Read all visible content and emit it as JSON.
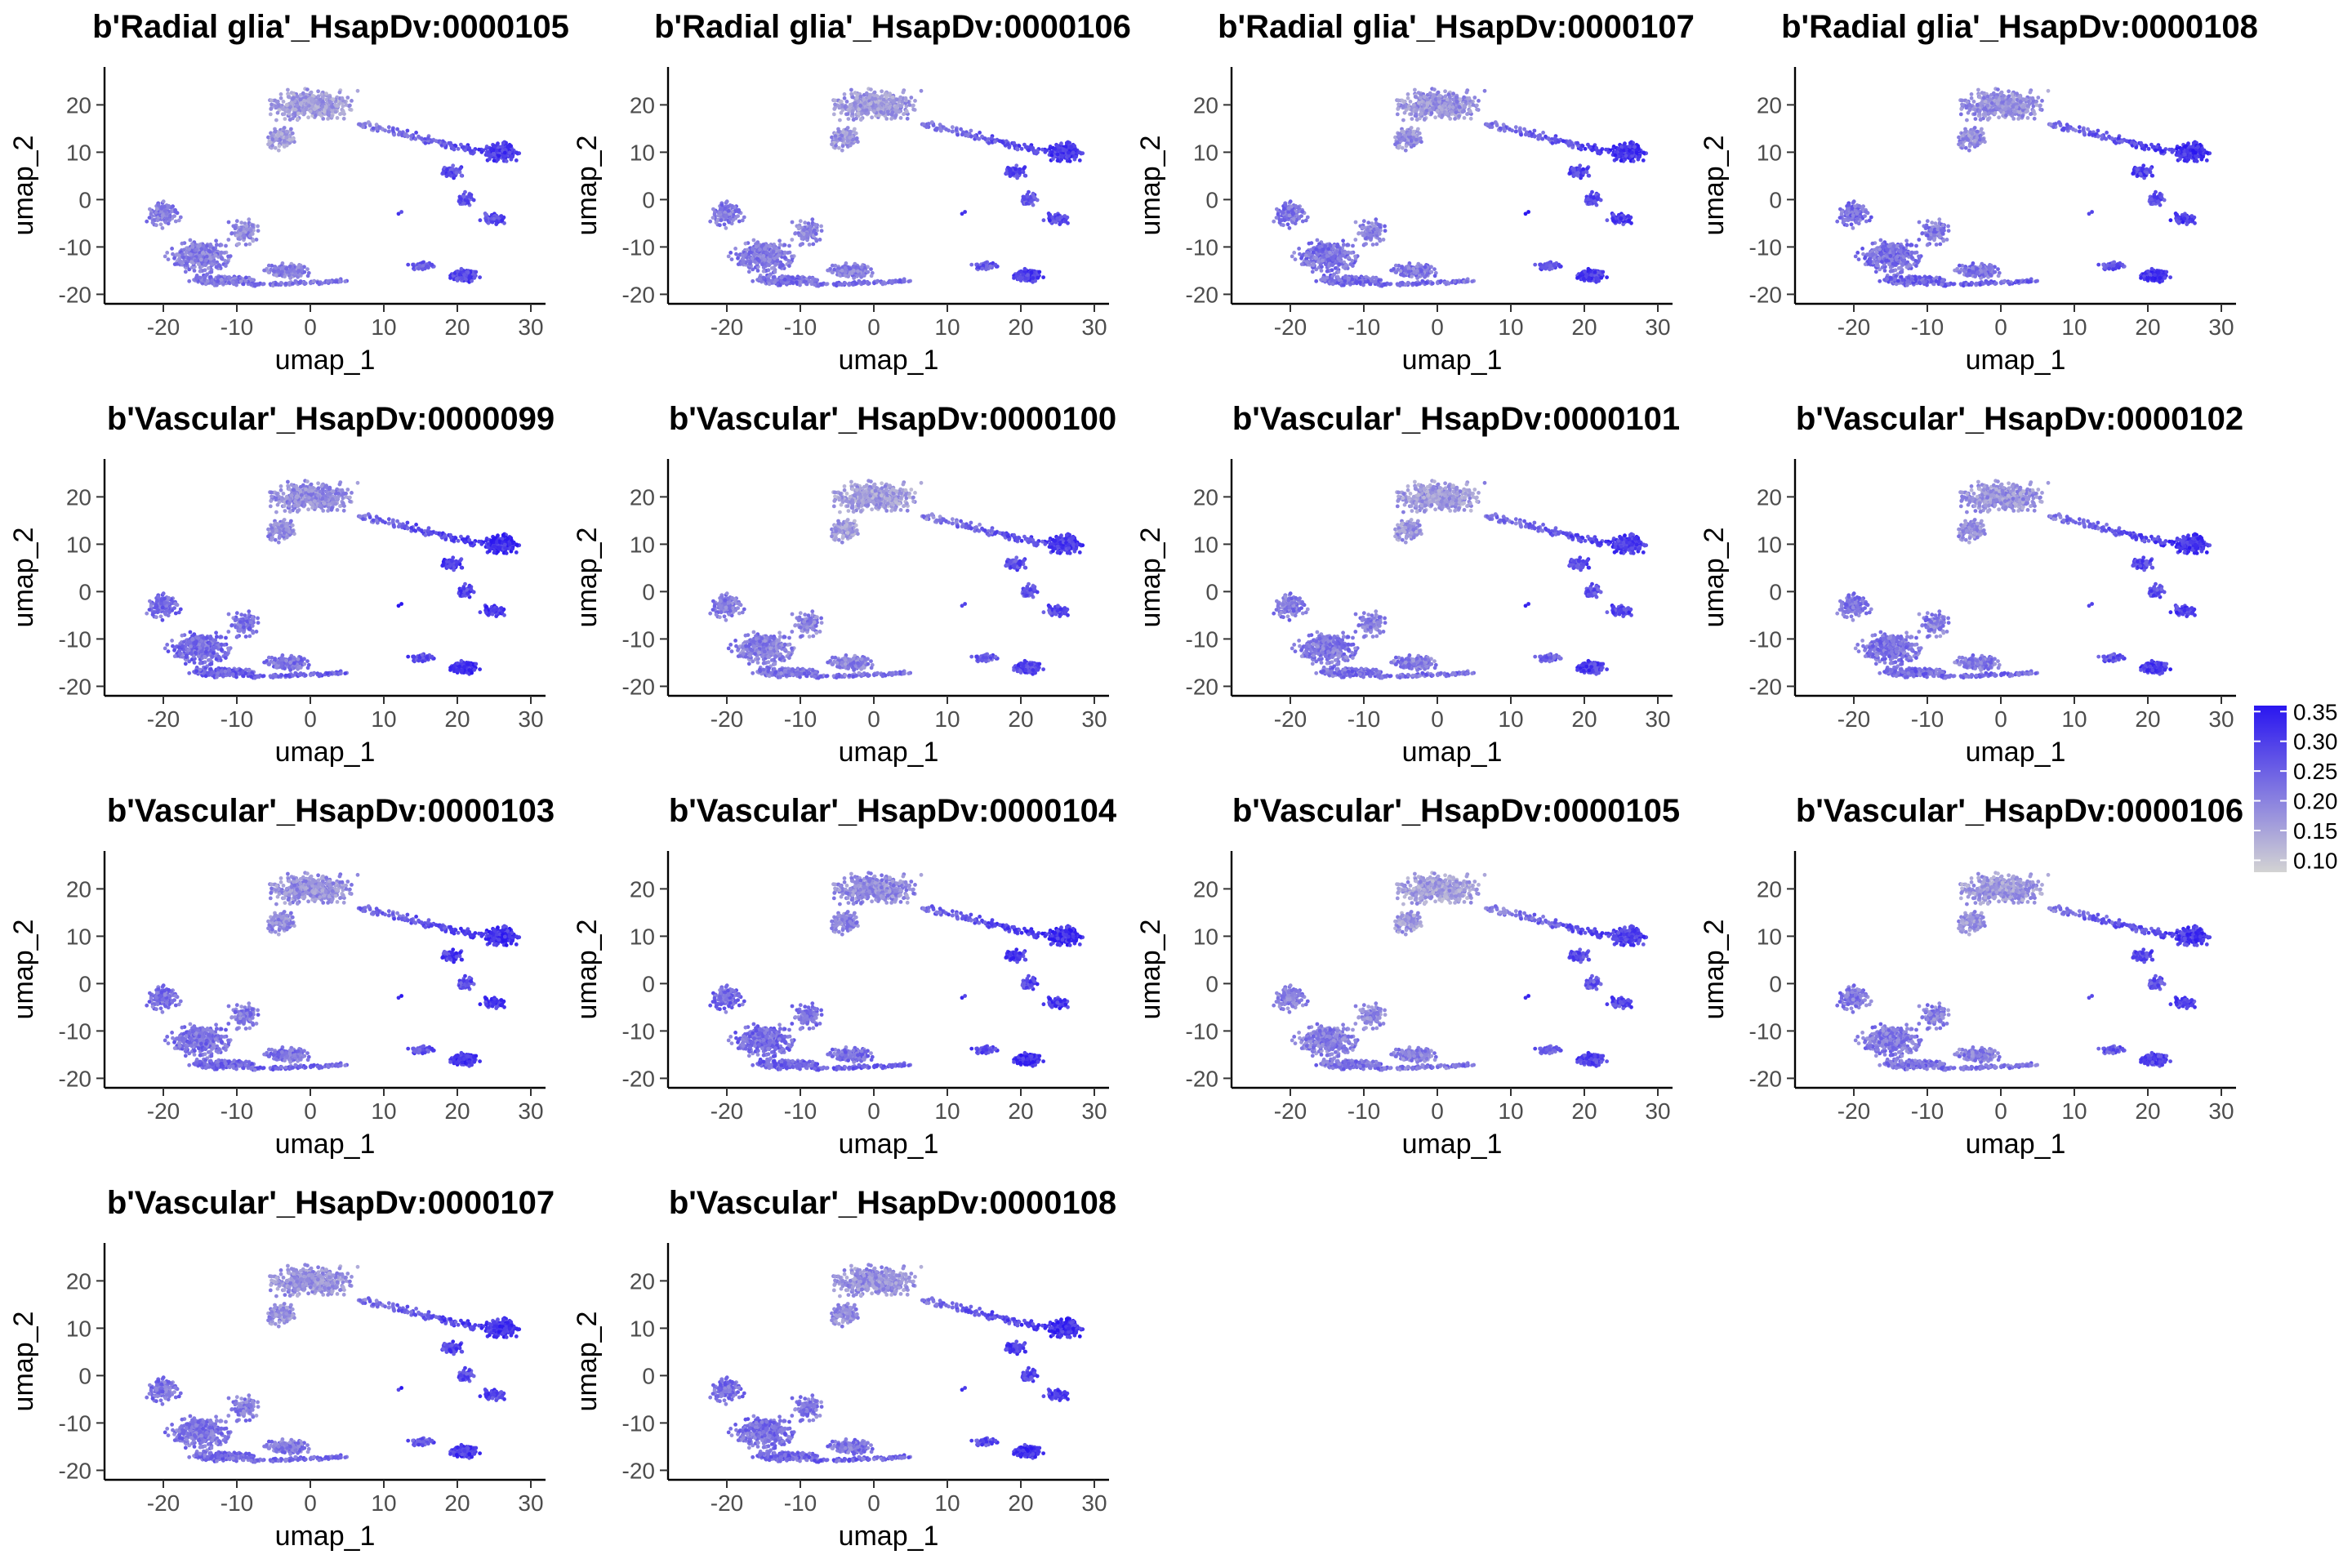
{
  "chart_data": {
    "type": "scatter",
    "xlabel": "umap_1",
    "ylabel": "umap_2",
    "xticks": [
      -20,
      -10,
      0,
      10,
      20,
      30
    ],
    "yticks": [
      -20,
      -10,
      0,
      10,
      20
    ],
    "xlim": [
      -28,
      32
    ],
    "ylim": [
      -22,
      28
    ],
    "grid": false,
    "colorscale": {
      "low_color": "#d3d3d3",
      "high_color": "#2a16f0",
      "range": [
        0.08,
        0.36
      ],
      "ticks": [
        "0.35",
        "0.30",
        "0.25",
        "0.20",
        "0.15",
        "0.10"
      ],
      "legend_position": "right"
    },
    "panels": [
      {
        "title": "b'Radial glia'_HsapDv:0000105"
      },
      {
        "title": "b'Radial glia'_HsapDv:0000106"
      },
      {
        "title": "b'Radial glia'_HsapDv:0000107"
      },
      {
        "title": "b'Radial glia'_HsapDv:0000108"
      },
      {
        "title": "b'Vascular'_HsapDv:0000099"
      },
      {
        "title": "b'Vascular'_HsapDv:0000100"
      },
      {
        "title": "b'Vascular'_HsapDv:0000101"
      },
      {
        "title": "b'Vascular'_HsapDv:0000102"
      },
      {
        "title": "b'Vascular'_HsapDv:0000103"
      },
      {
        "title": "b'Vascular'_HsapDv:0000104"
      },
      {
        "title": "b'Vascular'_HsapDv:0000105"
      },
      {
        "title": "b'Vascular'_HsapDv:0000106"
      },
      {
        "title": "b'Vascular'_HsapDv:0000107"
      },
      {
        "title": "b'Vascular'_HsapDv:0000108"
      }
    ]
  }
}
